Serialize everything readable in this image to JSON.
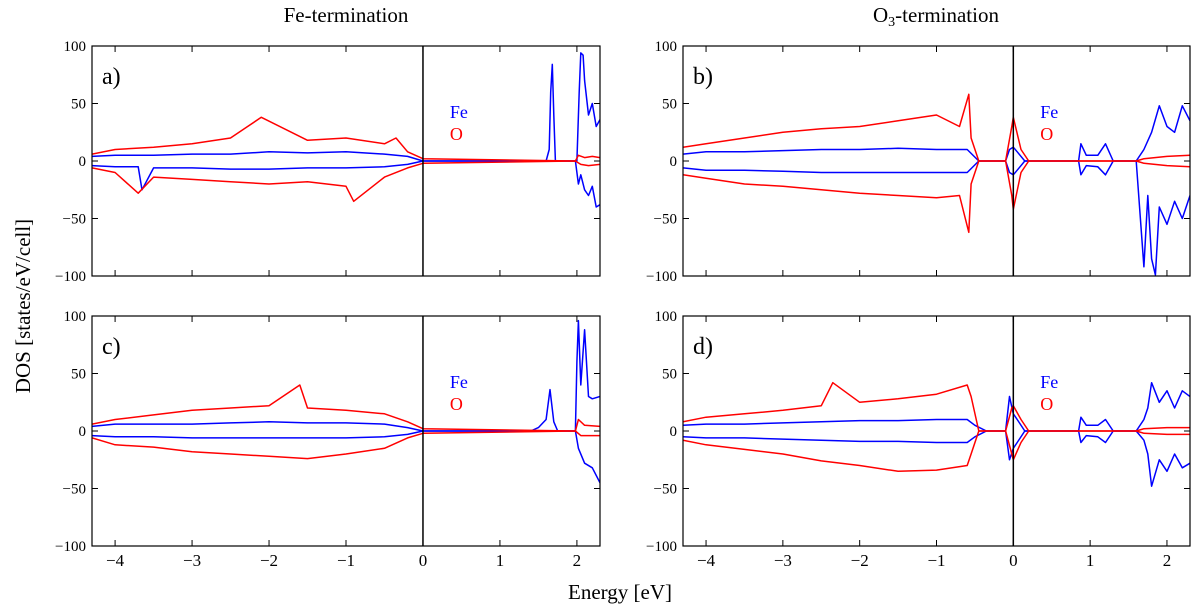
{
  "figure": {
    "column_titles": [
      "Fe-termination",
      "O3-termination"
    ],
    "column_title_parts": [
      {
        "main": "Fe-termination",
        "sub": "",
        "rest": ""
      },
      {
        "main": "O",
        "sub": "3",
        "rest": "-termination"
      }
    ],
    "ylabel": "DOS [states/eV/cell]",
    "xlabel": "Energy [eV]"
  },
  "chart_data": [
    {
      "type": "line",
      "panel_label": "a)",
      "xlim": [
        -4.3,
        2.3
      ],
      "ylim": [
        -100,
        100
      ],
      "xticks": [
        -4,
        -3,
        -2,
        -1,
        0,
        1,
        2
      ],
      "yticks": [
        -100,
        -50,
        0,
        50,
        100
      ],
      "xtick_labels_shown": false,
      "fermi_level": 0,
      "legend": {
        "placement": "upper-middle",
        "entries": [
          {
            "name": "Fe",
            "color": "#0000ff"
          },
          {
            "name": "O",
            "color": "#ff0000"
          }
        ]
      },
      "series": [
        {
          "name": "Fe",
          "spin": "up",
          "color": "#0000ff",
          "x": [
            -4.3,
            -4.0,
            -3.5,
            -3.0,
            -2.5,
            -2.0,
            -1.5,
            -1.0,
            -0.5,
            -0.2,
            0.0,
            1.6,
            1.64,
            1.66,
            1.68,
            1.7,
            1.72,
            2.0,
            2.03,
            2.05,
            2.08,
            2.1,
            2.15,
            2.2,
            2.25,
            2.3
          ],
          "y": [
            4,
            5,
            5,
            6,
            6,
            8,
            7,
            8,
            6,
            4,
            0,
            0,
            10,
            60,
            84,
            40,
            0,
            0,
            60,
            94,
            92,
            70,
            40,
            50,
            30,
            36
          ]
        },
        {
          "name": "Fe",
          "spin": "down",
          "color": "#0000ff",
          "x": [
            -4.3,
            -4.0,
            -3.7,
            -3.65,
            -3.5,
            -3.0,
            -2.5,
            -2.0,
            -1.5,
            -1.0,
            -0.5,
            -0.2,
            0.0,
            1.98,
            2.02,
            2.05,
            2.1,
            2.15,
            2.2,
            2.25,
            2.3
          ],
          "y": [
            -4,
            -5,
            -5,
            -25,
            -6,
            -6,
            -7,
            -7,
            -6,
            -6,
            -5,
            -3,
            0,
            0,
            -20,
            -12,
            -25,
            -30,
            -22,
            -40,
            -38
          ]
        },
        {
          "name": "O",
          "spin": "up",
          "color": "#ff0000",
          "x": [
            -4.3,
            -4.0,
            -3.5,
            -3.0,
            -2.5,
            -2.1,
            -1.5,
            -1.0,
            -0.5,
            -0.35,
            -0.2,
            0.0,
            1.98,
            2.02,
            2.1,
            2.2,
            2.3
          ],
          "y": [
            6,
            10,
            12,
            15,
            20,
            38,
            18,
            20,
            15,
            20,
            8,
            2,
            0,
            5,
            3,
            4,
            3
          ]
        },
        {
          "name": "O",
          "spin": "down",
          "color": "#ff0000",
          "x": [
            -4.3,
            -4.0,
            -3.7,
            -3.5,
            -3.0,
            -2.5,
            -2.0,
            -1.5,
            -1.0,
            -0.9,
            -0.5,
            -0.2,
            0.0,
            1.98,
            2.05,
            2.15,
            2.3
          ],
          "y": [
            -6,
            -10,
            -28,
            -14,
            -16,
            -18,
            -20,
            -18,
            -22,
            -35,
            -14,
            -6,
            -2,
            0,
            -3,
            -4,
            -3
          ]
        }
      ]
    },
    {
      "type": "line",
      "panel_label": "b)",
      "xlim": [
        -4.3,
        2.3
      ],
      "ylim": [
        -100,
        100
      ],
      "xticks": [
        -4,
        -3,
        -2,
        -1,
        0,
        1,
        2
      ],
      "yticks": [
        -100,
        -50,
        0,
        50,
        100
      ],
      "xtick_labels_shown": false,
      "fermi_level": 0,
      "legend": {
        "placement": "upper-middle",
        "entries": [
          {
            "name": "Fe",
            "color": "#0000ff"
          },
          {
            "name": "O",
            "color": "#ff0000"
          }
        ]
      },
      "series": [
        {
          "name": "Fe",
          "spin": "up",
          "color": "#0000ff",
          "x": [
            -4.3,
            -4.0,
            -3.5,
            -3.0,
            -2.5,
            -2.0,
            -1.5,
            -1.0,
            -0.6,
            -0.45,
            -0.1,
            -0.05,
            0.0,
            0.05,
            0.15,
            0.85,
            0.88,
            0.95,
            1.1,
            1.2,
            1.3,
            1.6,
            1.7,
            1.8,
            1.9,
            2.0,
            2.1,
            2.2,
            2.3
          ],
          "y": [
            6,
            8,
            8,
            9,
            10,
            10,
            11,
            10,
            10,
            0,
            0,
            10,
            12,
            8,
            0,
            0,
            15,
            5,
            5,
            15,
            0,
            0,
            10,
            25,
            48,
            30,
            25,
            48,
            35
          ]
        },
        {
          "name": "Fe",
          "spin": "down",
          "color": "#0000ff",
          "x": [
            -4.3,
            -4.0,
            -3.5,
            -3.0,
            -2.5,
            -2.0,
            -1.5,
            -1.0,
            -0.6,
            -0.45,
            -0.1,
            -0.05,
            0.0,
            0.05,
            0.15,
            0.85,
            0.88,
            0.95,
            1.1,
            1.2,
            1.3,
            1.6,
            1.7,
            1.75,
            1.8,
            1.85,
            1.9,
            2.0,
            2.1,
            2.2,
            2.3
          ],
          "y": [
            -6,
            -8,
            -8,
            -9,
            -10,
            -10,
            -10,
            -10,
            -10,
            0,
            0,
            -10,
            -12,
            -8,
            0,
            0,
            -12,
            -4,
            -5,
            -12,
            0,
            0,
            -92,
            -30,
            -85,
            -99,
            -40,
            -55,
            -35,
            -50,
            -30
          ]
        },
        {
          "name": "O",
          "spin": "up",
          "color": "#ff0000",
          "x": [
            -4.3,
            -4.0,
            -3.5,
            -3.0,
            -2.5,
            -2.0,
            -1.5,
            -1.0,
            -0.7,
            -0.58,
            -0.55,
            -0.45,
            -0.1,
            -0.02,
            0.0,
            0.1,
            0.2,
            1.6,
            1.7,
            2.0,
            2.3
          ],
          "y": [
            12,
            15,
            20,
            25,
            28,
            30,
            35,
            40,
            30,
            58,
            20,
            0,
            0,
            30,
            38,
            10,
            0,
            0,
            2,
            4,
            5
          ]
        },
        {
          "name": "O",
          "spin": "down",
          "color": "#ff0000",
          "x": [
            -4.3,
            -4.0,
            -3.5,
            -3.0,
            -2.5,
            -2.0,
            -1.5,
            -1.0,
            -0.7,
            -0.58,
            -0.55,
            -0.45,
            -0.1,
            -0.02,
            0.0,
            0.1,
            0.2,
            1.6,
            1.7,
            2.0,
            2.3
          ],
          "y": [
            -12,
            -15,
            -20,
            -22,
            -25,
            -28,
            -30,
            -32,
            -30,
            -62,
            -20,
            0,
            0,
            -30,
            -42,
            -10,
            0,
            0,
            -2,
            -4,
            -5
          ]
        }
      ]
    },
    {
      "type": "line",
      "panel_label": "c)",
      "xlim": [
        -4.3,
        2.3
      ],
      "ylim": [
        -100,
        100
      ],
      "xticks": [
        -4,
        -3,
        -2,
        -1,
        0,
        1,
        2
      ],
      "yticks": [
        -100,
        -50,
        0,
        50,
        100
      ],
      "xtick_labels_shown": true,
      "fermi_level": 0,
      "legend": {
        "placement": "upper-middle",
        "entries": [
          {
            "name": "Fe",
            "color": "#0000ff"
          },
          {
            "name": "O",
            "color": "#ff0000"
          }
        ]
      },
      "series": [
        {
          "name": "Fe",
          "spin": "up",
          "color": "#0000ff",
          "x": [
            -4.3,
            -4.0,
            -3.5,
            -3.0,
            -2.5,
            -2.0,
            -1.5,
            -1.0,
            -0.5,
            -0.2,
            0.0,
            1.4,
            1.5,
            1.6,
            1.65,
            1.7,
            1.75,
            1.98,
            2.0,
            2.02,
            2.05,
            2.1,
            2.15,
            2.2,
            2.3
          ],
          "y": [
            4,
            6,
            6,
            6,
            7,
            8,
            7,
            7,
            6,
            3,
            0,
            0,
            3,
            10,
            36,
            8,
            0,
            0,
            60,
            96,
            40,
            88,
            30,
            28,
            30
          ]
        },
        {
          "name": "Fe",
          "spin": "down",
          "color": "#0000ff",
          "x": [
            -4.3,
            -4.0,
            -3.5,
            -3.0,
            -2.5,
            -2.0,
            -1.5,
            -1.0,
            -0.5,
            -0.2,
            0.0,
            1.98,
            2.02,
            2.1,
            2.2,
            2.3
          ],
          "y": [
            -4,
            -5,
            -5,
            -6,
            -6,
            -6,
            -6,
            -6,
            -5,
            -3,
            0,
            0,
            -15,
            -28,
            -32,
            -45
          ]
        },
        {
          "name": "O",
          "spin": "up",
          "color": "#ff0000",
          "x": [
            -4.3,
            -4.0,
            -3.5,
            -3.0,
            -2.5,
            -2.0,
            -1.6,
            -1.5,
            -1.0,
            -0.5,
            -0.2,
            0.0,
            1.98,
            2.02,
            2.1,
            2.3
          ],
          "y": [
            6,
            10,
            14,
            18,
            20,
            22,
            40,
            20,
            18,
            15,
            8,
            2,
            0,
            10,
            5,
            4
          ]
        },
        {
          "name": "O",
          "spin": "down",
          "color": "#ff0000",
          "x": [
            -4.3,
            -4.0,
            -3.5,
            -3.0,
            -2.5,
            -2.0,
            -1.5,
            -1.0,
            -0.5,
            -0.2,
            0.0,
            1.98,
            2.05,
            2.3
          ],
          "y": [
            -6,
            -12,
            -14,
            -18,
            -20,
            -22,
            -24,
            -20,
            -15,
            -6,
            -2,
            0,
            -4,
            -4
          ]
        }
      ]
    },
    {
      "type": "line",
      "panel_label": "d)",
      "xlim": [
        -4.3,
        2.3
      ],
      "ylim": [
        -100,
        100
      ],
      "xticks": [
        -4,
        -3,
        -2,
        -1,
        0,
        1,
        2
      ],
      "yticks": [
        -100,
        -50,
        0,
        50,
        100
      ],
      "xtick_labels_shown": true,
      "fermi_level": 0,
      "legend": {
        "placement": "upper-middle",
        "entries": [
          {
            "name": "Fe",
            "color": "#0000ff"
          },
          {
            "name": "O",
            "color": "#ff0000"
          }
        ]
      },
      "series": [
        {
          "name": "Fe",
          "spin": "up",
          "color": "#0000ff",
          "x": [
            -4.3,
            -4.0,
            -3.5,
            -3.0,
            -2.5,
            -2.0,
            -1.5,
            -1.0,
            -0.6,
            -0.5,
            -0.35,
            -0.1,
            -0.05,
            0.0,
            0.05,
            0.15,
            0.85,
            0.88,
            0.95,
            1.1,
            1.2,
            1.3,
            1.6,
            1.7,
            1.75,
            1.8,
            1.9,
            2.0,
            2.1,
            2.2,
            2.3
          ],
          "y": [
            5,
            6,
            6,
            7,
            8,
            9,
            9,
            10,
            10,
            5,
            0,
            0,
            30,
            15,
            10,
            0,
            0,
            12,
            5,
            5,
            10,
            0,
            0,
            10,
            20,
            42,
            25,
            35,
            20,
            35,
            30
          ]
        },
        {
          "name": "Fe",
          "spin": "down",
          "color": "#0000ff",
          "x": [
            -4.3,
            -4.0,
            -3.5,
            -3.0,
            -2.5,
            -2.0,
            -1.5,
            -1.0,
            -0.6,
            -0.5,
            -0.35,
            -0.1,
            -0.05,
            0.0,
            0.05,
            0.15,
            0.85,
            0.88,
            0.95,
            1.1,
            1.2,
            1.3,
            1.6,
            1.7,
            1.75,
            1.8,
            1.9,
            2.0,
            2.1,
            2.2,
            2.3
          ],
          "y": [
            -5,
            -6,
            -6,
            -7,
            -8,
            -9,
            -9,
            -10,
            -10,
            -5,
            0,
            0,
            -25,
            -15,
            -10,
            0,
            0,
            -10,
            -4,
            -5,
            -10,
            0,
            0,
            -8,
            -20,
            -48,
            -25,
            -35,
            -20,
            -32,
            -28
          ]
        },
        {
          "name": "O",
          "spin": "up",
          "color": "#ff0000",
          "x": [
            -4.3,
            -4.0,
            -3.5,
            -3.0,
            -2.5,
            -2.35,
            -2.0,
            -1.5,
            -1.0,
            -0.6,
            -0.55,
            -0.45,
            -0.1,
            -0.02,
            0.0,
            0.1,
            0.2,
            1.6,
            1.7,
            2.0,
            2.3
          ],
          "y": [
            8,
            12,
            15,
            18,
            22,
            42,
            25,
            28,
            32,
            40,
            30,
            0,
            0,
            20,
            22,
            10,
            0,
            0,
            2,
            3,
            3
          ]
        },
        {
          "name": "O",
          "spin": "down",
          "color": "#ff0000",
          "x": [
            -4.3,
            -4.0,
            -3.5,
            -3.0,
            -2.5,
            -2.0,
            -1.5,
            -1.0,
            -0.6,
            -0.55,
            -0.45,
            -0.1,
            -0.02,
            0.0,
            0.1,
            0.2,
            1.6,
            1.7,
            2.0,
            2.3
          ],
          "y": [
            -8,
            -12,
            -16,
            -20,
            -26,
            -30,
            -35,
            -34,
            -30,
            -20,
            0,
            0,
            -20,
            -25,
            -10,
            0,
            0,
            -2,
            -3,
            -3
          ]
        }
      ]
    }
  ]
}
